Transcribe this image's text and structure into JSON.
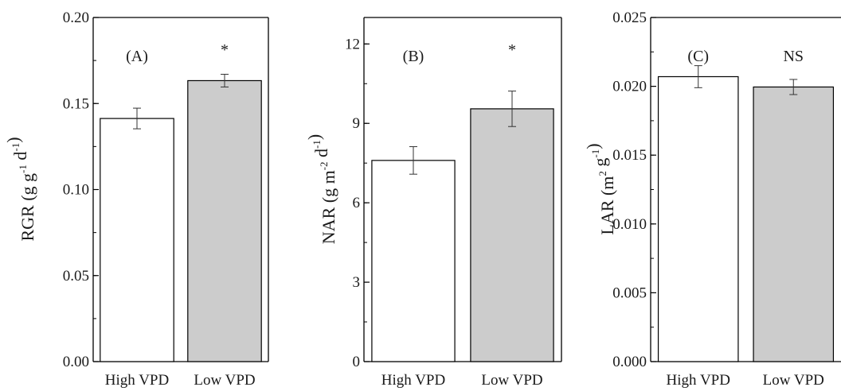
{
  "chart_data": [
    {
      "type": "bar",
      "panel_label": "(A)",
      "significance": "*",
      "ylabel": {
        "base": "RGR (g g",
        "sup1": "-1",
        "mid": " d",
        "sup2": "-1",
        "end": ")"
      },
      "categories": [
        "High VPD",
        "Low VPD"
      ],
      "values": [
        0.1413,
        0.1633
      ],
      "errors": [
        0.006,
        0.0037
      ],
      "bar_colors": [
        "#ffffff",
        "#cccccc"
      ],
      "ylim": [
        0,
        0.2
      ],
      "yticks": [
        "0.00",
        "0.05",
        "0.10",
        "0.15",
        "0.20"
      ],
      "ytick_values": [
        0,
        0.05,
        0.1,
        0.15,
        0.2
      ],
      "minor_step": 0.025
    },
    {
      "type": "bar",
      "panel_label": "(B)",
      "significance": "*",
      "ylabel": {
        "base": "NAR (g m",
        "sup1": "-2",
        "mid": " d",
        "sup2": "-1",
        "end": ")"
      },
      "categories": [
        "High VPD",
        "Low VPD"
      ],
      "values": [
        7.6,
        9.55
      ],
      "errors": [
        0.52,
        0.67
      ],
      "bar_colors": [
        "#ffffff",
        "#cccccc"
      ],
      "ylim": [
        0,
        13
      ],
      "yticks": [
        "0",
        "3",
        "6",
        "9",
        "12"
      ],
      "ytick_values": [
        0,
        3,
        6,
        9,
        12
      ],
      "minor_step": 1.5
    },
    {
      "type": "bar",
      "panel_label": "(C)",
      "significance": "NS",
      "ylabel": {
        "base": "LAR (m",
        "sup1": "2",
        "mid": " g",
        "sup2": "-1",
        "end": ")"
      },
      "categories": [
        "High VPD",
        "Low VPD"
      ],
      "values": [
        0.0207,
        0.01995
      ],
      "errors": [
        0.0008,
        0.00055
      ],
      "bar_colors": [
        "#ffffff",
        "#cccccc"
      ],
      "ylim": [
        0,
        0.025
      ],
      "yticks": [
        "0.000",
        "0.005",
        "0.010",
        "0.015",
        "0.020",
        "0.025"
      ],
      "ytick_values": [
        0,
        0.005,
        0.01,
        0.015,
        0.02,
        0.025
      ],
      "minor_step": 0.0025
    }
  ]
}
